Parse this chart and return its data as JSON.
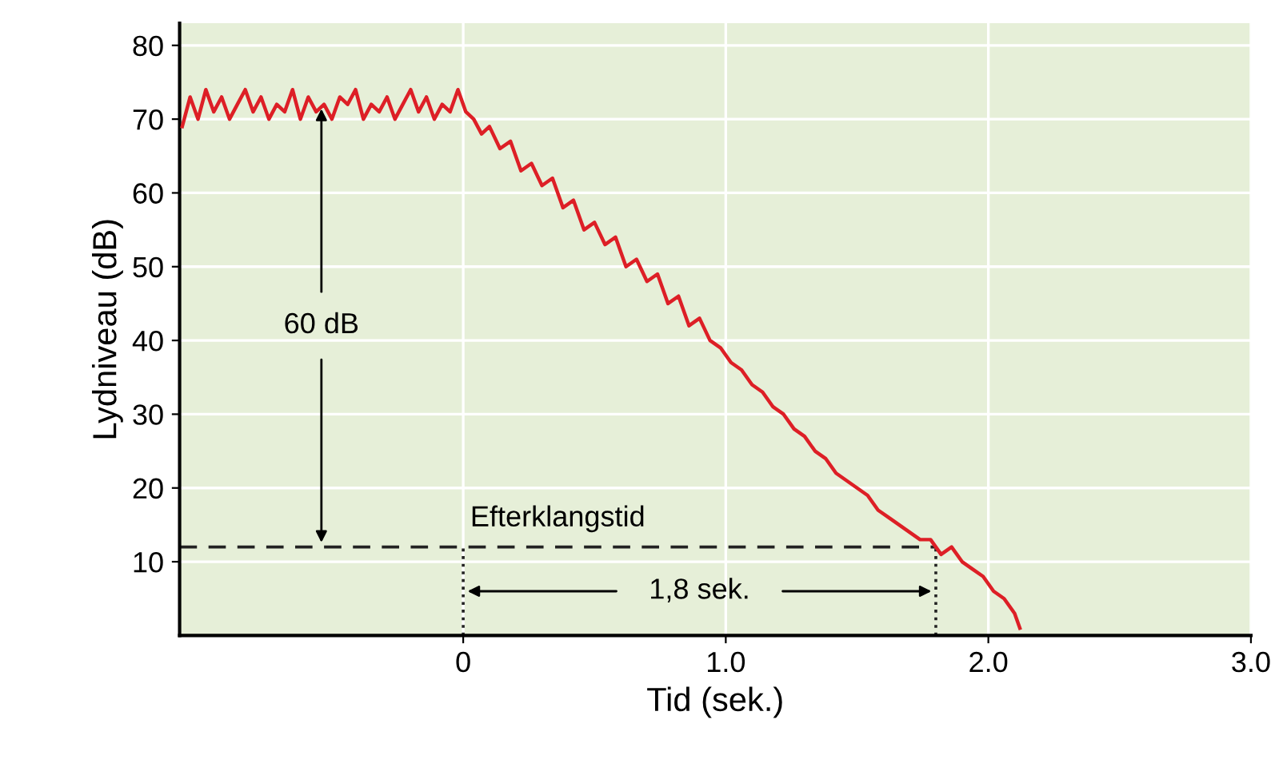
{
  "chart_data": {
    "type": "line",
    "xlabel": "Tid (sek.)",
    "ylabel": "Lydniveau (dB)",
    "xlim": [
      -1.08,
      3.0
    ],
    "ylim": [
      0,
      83
    ],
    "xticks": [
      0,
      {
        "value": 1.0,
        "label": "1.0"
      },
      {
        "value": 2.0,
        "label": "2.0"
      },
      {
        "value": 3.0,
        "label": "3.0"
      }
    ],
    "yticks": [
      10,
      20,
      30,
      40,
      50,
      60,
      70,
      80
    ],
    "grid": true,
    "series": [
      {
        "color": "#dd1f26",
        "x": [
          -1.07,
          -1.04,
          -1.01,
          -0.98,
          -0.95,
          -0.92,
          -0.89,
          -0.86,
          -0.83,
          -0.8,
          -0.77,
          -0.74,
          -0.71,
          -0.68,
          -0.65,
          -0.62,
          -0.59,
          -0.56,
          -0.53,
          -0.5,
          -0.47,
          -0.44,
          -0.41,
          -0.38,
          -0.35,
          -0.32,
          -0.29,
          -0.26,
          -0.23,
          -0.2,
          -0.17,
          -0.14,
          -0.11,
          -0.08,
          -0.05,
          -0.02,
          0.01,
          0.04,
          0.07,
          0.1,
          0.14,
          0.18,
          0.22,
          0.26,
          0.3,
          0.34,
          0.38,
          0.42,
          0.46,
          0.5,
          0.54,
          0.58,
          0.62,
          0.66,
          0.7,
          0.74,
          0.78,
          0.82,
          0.86,
          0.9,
          0.94,
          0.98,
          1.02,
          1.06,
          1.1,
          1.14,
          1.18,
          1.22,
          1.26,
          1.3,
          1.34,
          1.38,
          1.42,
          1.46,
          1.5,
          1.54,
          1.58,
          1.62,
          1.66,
          1.7,
          1.74,
          1.78,
          1.82,
          1.86,
          1.9,
          1.94,
          1.98,
          2.02,
          2.06,
          2.1,
          2.12
        ],
        "values": [
          69,
          73,
          70,
          74,
          71,
          73,
          70,
          72,
          74,
          71,
          73,
          70,
          72,
          71,
          74,
          70,
          73,
          71,
          72,
          70,
          73,
          72,
          74,
          70,
          72,
          71,
          73,
          70,
          72,
          74,
          71,
          73,
          70,
          72,
          71,
          74,
          71,
          70,
          68,
          69,
          66,
          67,
          63,
          64,
          61,
          62,
          58,
          59,
          55,
          56,
          53,
          54,
          50,
          51,
          48,
          49,
          45,
          46,
          42,
          43,
          40,
          39,
          37,
          36,
          34,
          33,
          31,
          30,
          28,
          27,
          25,
          24,
          22,
          21,
          20,
          19,
          17,
          16,
          15,
          14,
          13,
          13,
          11,
          12,
          10,
          9,
          8,
          6,
          5,
          3,
          1
        ]
      }
    ],
    "ref_lines": [
      {
        "axis": "y",
        "value": 12,
        "color": "#222222",
        "line_style": "dashed"
      },
      {
        "axis": "x",
        "value": 0,
        "color": "#222222",
        "line_style": "dotted"
      },
      {
        "axis": "x",
        "value": 1.8,
        "color": "#222222",
        "line_style": "dotted"
      }
    ],
    "annotations": [
      {
        "text": "60 dB",
        "x": -0.54,
        "y": 72
      },
      "Efterklangstid",
      "1,8 sek."
    ]
  }
}
